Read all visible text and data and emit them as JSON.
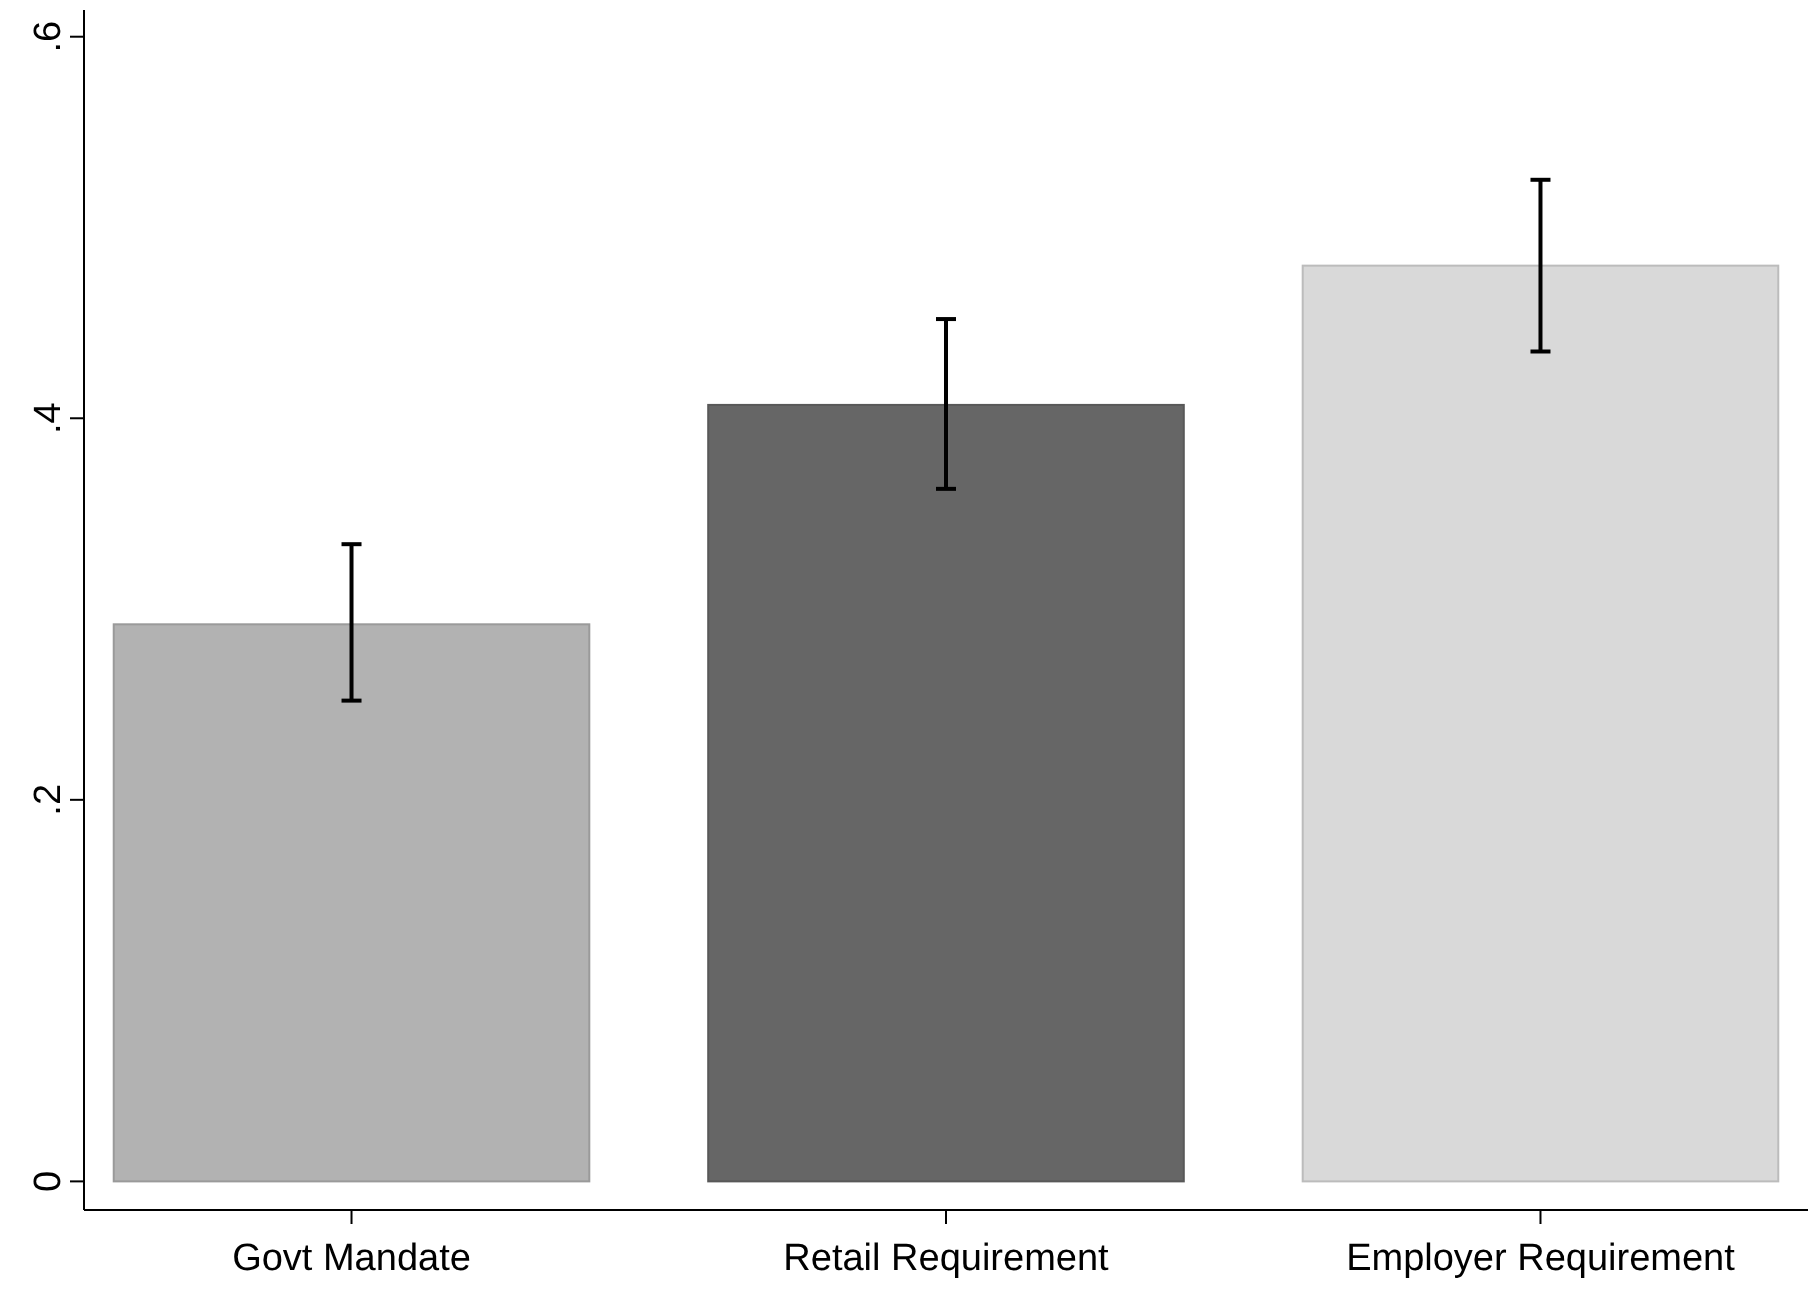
{
  "chart_data": {
    "type": "bar",
    "categories": [
      "Govt Mandate",
      "Retail Requirement",
      "Employer Requirement"
    ],
    "values": [
      0.292,
      0.407,
      0.48
    ],
    "colors": [
      "#b2b2b2",
      "#666666",
      "#d9d9d9"
    ],
    "errors": [
      [
        0.252,
        0.334
      ],
      [
        0.363,
        0.452
      ],
      [
        0.435,
        0.525
      ]
    ],
    "ylim": [
      -0.015,
      0.614
    ],
    "yticks": [
      {
        "value": 0,
        "label": "0"
      },
      {
        "value": 0.2,
        "label": ".2"
      },
      {
        "value": 0.4,
        "label": ".4"
      },
      {
        "value": 0.6,
        "label": ".6"
      }
    ],
    "grid": false
  }
}
